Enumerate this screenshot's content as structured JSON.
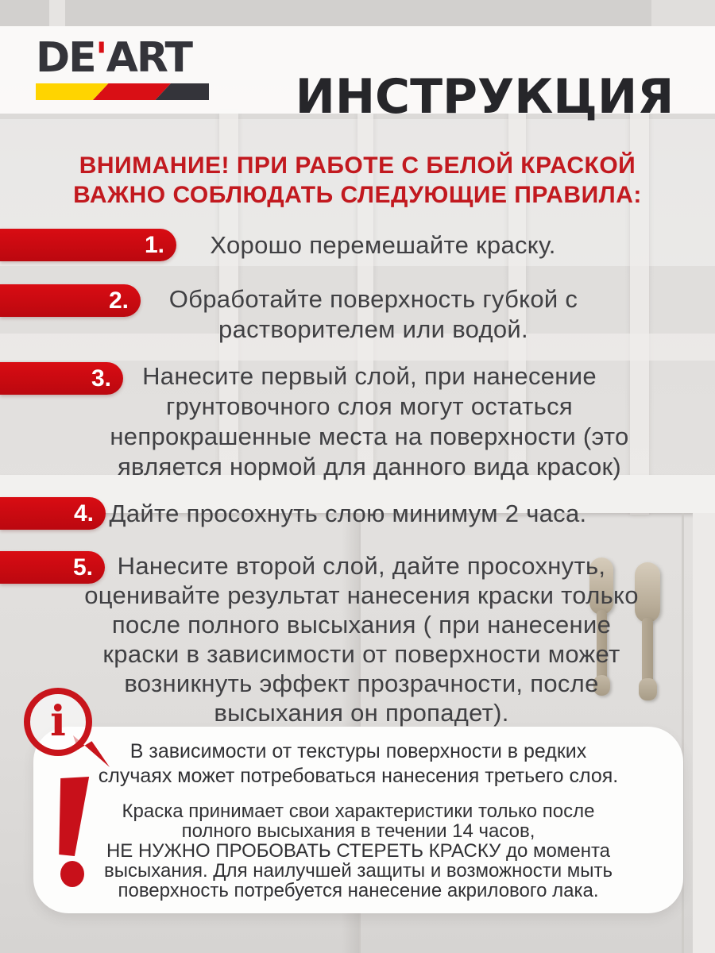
{
  "brand": {
    "logo_de": "DE",
    "logo_apostrophe": "'",
    "logo_art": "ART"
  },
  "header": {
    "title": "ИНСТРУКЦИЯ"
  },
  "warning": {
    "text": "ВНИМАНИЕ! ПРИ РАБОТЕ С БЕЛОЙ КРАСКОЙ\nВАЖНО СОБЛЮДАТЬ СЛЕДУЮЩИЕ ПРАВИЛА:"
  },
  "steps": [
    {
      "number": "1.",
      "text": "Хорошо перемешайте краску."
    },
    {
      "number": "2.",
      "text": "Обработайте поверхность губкой с\nрастворителем или водой."
    },
    {
      "number": "3.",
      "text": "Нанесите первый слой, при нанесение\nгрунтовочного слоя могут остаться\nнепрокрашенные места на поверхности (это\nявляется нормой для данного вида красок)"
    },
    {
      "number": "4.",
      "text": "Дайте просохнуть слою минимум 2 часа."
    },
    {
      "number": "5.",
      "text": "Нанесите второй слой, дайте просохнуть,\nоценивайте результат нанесения краски только\nпосле полного высыхания ( при нанесение\nкраски в зависимости от поверхности может\nвозникнуть эффект прозрачности, после\nвысыхания он пропадет)."
    }
  ],
  "notes": {
    "info_icon_glyph": "i",
    "note1": "В зависимости от текстуры поверхности в редких\nслучаях может потребоваться нанесения третьего слоя.",
    "note2": "Краска принимает свои характеристики только после\nполного высыхания в течении 14 часов,\nНЕ НУЖНО ПРОБОВАТЬ СТЕРЕТЬ КРАСКУ до момента\nвысыхания. Для наилучшей защиты и возможности мыть\nповерхность потребуется нанесение акрилового лака."
  },
  "colors": {
    "accent_red": "#d10b12",
    "warning_red": "#c2191f",
    "logo_yellow": "#ffd400",
    "logo_red": "#d90f15",
    "logo_dark": "#34343a"
  }
}
